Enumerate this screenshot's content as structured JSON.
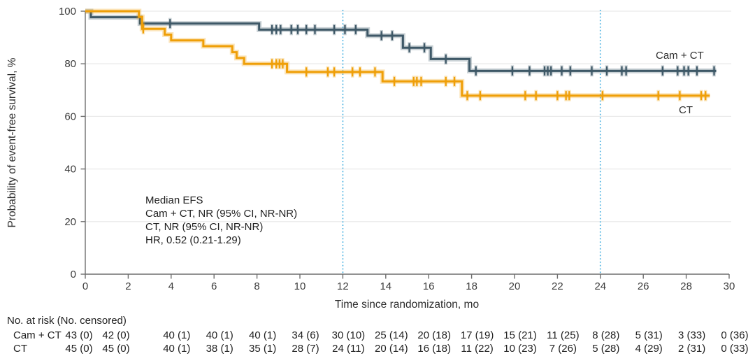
{
  "chart_data": {
    "type": "line",
    "subtype": "kaplan-meier-step-curves",
    "title": "",
    "xlabel": "Time since randomization, mo",
    "ylabel": "Probability of event-free survival, %",
    "xlim": [
      0,
      30
    ],
    "ylim": [
      0,
      100
    ],
    "x_ticks": [
      0,
      2,
      4,
      6,
      8,
      10,
      12,
      14,
      16,
      18,
      20,
      22,
      24,
      26,
      28,
      30
    ],
    "y_ticks": [
      0,
      20,
      40,
      60,
      80,
      100
    ],
    "grid": "horizontal light-gray lines at y ticks 20-100",
    "legend_position": "labels at right end of each curve",
    "reference_lines_x": [
      12,
      24
    ],
    "annotation": [
      "Median EFS",
      "Cam + CT, NR (95% CI, NR-NR)",
      "CT, NR (95% CI, NR-NR)",
      "HR, 0.52 (0.21-1.29)"
    ],
    "series": [
      {
        "name": "Cam + CT",
        "color": "#3E5867",
        "halo_color": "#3E5867",
        "steps": [
          [
            0,
            100
          ],
          [
            0.26,
            97.7
          ],
          [
            2.55,
            95.3
          ],
          [
            8.1,
            93.0
          ],
          [
            13.15,
            90.7
          ],
          [
            14.8,
            86.1
          ],
          [
            16.1,
            81.8
          ],
          [
            17.9,
            77.3
          ]
        ],
        "end_time": 29.4,
        "censors": [
          [
            3.95,
            95.3
          ],
          [
            8.7,
            93.0
          ],
          [
            8.9,
            93.0
          ],
          [
            9.1,
            93.0
          ],
          [
            9.6,
            93.0
          ],
          [
            9.9,
            93.0
          ],
          [
            10.3,
            93.0
          ],
          [
            10.7,
            93.0
          ],
          [
            11.6,
            93.0
          ],
          [
            12.1,
            93.0
          ],
          [
            12.6,
            93.0
          ],
          [
            13.8,
            90.7
          ],
          [
            14.3,
            90.7
          ],
          [
            15.1,
            86.1
          ],
          [
            15.8,
            86.1
          ],
          [
            16.8,
            81.8
          ],
          [
            18.2,
            77.3
          ],
          [
            19.9,
            77.3
          ],
          [
            20.7,
            77.3
          ],
          [
            21.4,
            77.3
          ],
          [
            21.55,
            77.3
          ],
          [
            21.7,
            77.3
          ],
          [
            22.2,
            77.3
          ],
          [
            22.6,
            77.3
          ],
          [
            23.6,
            77.3
          ],
          [
            24.3,
            77.3
          ],
          [
            25.0,
            77.3
          ],
          [
            25.2,
            77.3
          ],
          [
            26.9,
            77.3
          ],
          [
            27.6,
            77.3
          ],
          [
            27.9,
            77.3
          ],
          [
            28.1,
            77.3
          ],
          [
            28.5,
            77.3
          ],
          [
            29.3,
            77.3
          ]
        ]
      },
      {
        "name": "CT",
        "color": "#EF9F08",
        "halo_color": "#EF9F08",
        "steps": [
          [
            0,
            100
          ],
          [
            2.5,
            97.8
          ],
          [
            2.65,
            93.3
          ],
          [
            3.7,
            91.1
          ],
          [
            4.0,
            88.9
          ],
          [
            5.5,
            86.7
          ],
          [
            6.85,
            84.4
          ],
          [
            7.05,
            82.2
          ],
          [
            7.4,
            80.0
          ],
          [
            9.4,
            76.9
          ],
          [
            13.85,
            73.3
          ],
          [
            17.55,
            67.9
          ]
        ],
        "end_time": 29.1,
        "censors": [
          [
            2.7,
            93.3
          ],
          [
            8.7,
            80.0
          ],
          [
            8.9,
            80.0
          ],
          [
            9.05,
            80.0
          ],
          [
            9.2,
            80.0
          ],
          [
            10.3,
            76.9
          ],
          [
            11.3,
            76.9
          ],
          [
            11.6,
            76.9
          ],
          [
            12.45,
            76.9
          ],
          [
            12.8,
            76.9
          ],
          [
            13.5,
            76.9
          ],
          [
            14.4,
            73.3
          ],
          [
            15.3,
            73.3
          ],
          [
            15.45,
            73.3
          ],
          [
            15.65,
            73.3
          ],
          [
            16.8,
            73.3
          ],
          [
            17.2,
            73.3
          ],
          [
            17.8,
            67.9
          ],
          [
            18.4,
            67.9
          ],
          [
            20.5,
            67.9
          ],
          [
            21.0,
            67.9
          ],
          [
            22.0,
            67.9
          ],
          [
            22.4,
            67.9
          ],
          [
            22.55,
            67.9
          ],
          [
            24.1,
            67.9
          ],
          [
            26.7,
            67.9
          ],
          [
            27.7,
            67.9
          ],
          [
            28.7,
            67.9
          ],
          [
            28.9,
            67.9
          ]
        ]
      }
    ],
    "risk_table": {
      "header": "No. at risk (No. censored)",
      "times": [
        0,
        2,
        4,
        6,
        8,
        10,
        12,
        14,
        16,
        18,
        20,
        22,
        24,
        26,
        28,
        30
      ],
      "rows": [
        {
          "label": "Cam + CT",
          "values": [
            "43 (0)",
            "42 (0)",
            "40 (1)",
            "40 (1)",
            "40 (1)",
            "34 (6)",
            "30 (10)",
            "25 (14)",
            "20 (18)",
            "17 (19)",
            "15 (21)",
            "11 (25)",
            "8 (28)",
            "5 (31)",
            "3 (33)",
            "0 (36)"
          ]
        },
        {
          "label": "CT",
          "values": [
            "45 (0)",
            "45 (0)",
            "40 (1)",
            "38 (1)",
            "35 (1)",
            "28 (7)",
            "24 (11)",
            "20 (14)",
            "16 (18)",
            "11 (22)",
            "10 (23)",
            "7 (26)",
            "5 (28)",
            "4 (29)",
            "2 (31)",
            "0 (33)"
          ]
        }
      ]
    },
    "colors": {
      "cam_ct_line": "#3E5867",
      "ct_line": "#EF9F08",
      "reference_line": "#56B7E3",
      "gridline": "#EAEAEA",
      "axis": "#6E6E6E"
    }
  }
}
